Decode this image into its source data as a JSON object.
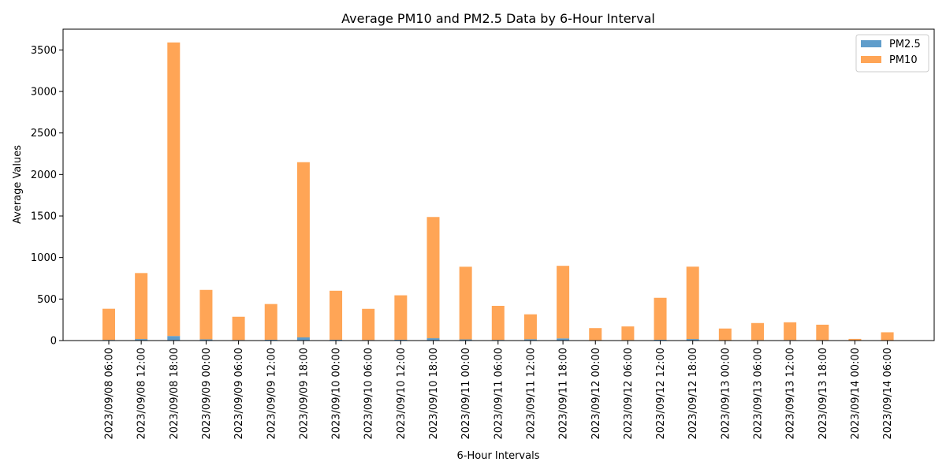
{
  "chart_data": {
    "type": "bar",
    "stacked": true,
    "title": "Average PM10 and PM2.5 Data by 6-Hour Interval",
    "xlabel": "6-Hour Intervals",
    "ylabel": "Average Values",
    "ylim": [
      0,
      3750
    ],
    "yticks": [
      0,
      500,
      1000,
      1500,
      2000,
      2500,
      3000,
      3500
    ],
    "grid": false,
    "legend_position": "top-right",
    "categories": [
      "2023/09/08 06:00",
      "2023/09/08 12:00",
      "2023/09/08 18:00",
      "2023/09/09 00:00",
      "2023/09/09 06:00",
      "2023/09/09 12:00",
      "2023/09/09 18:00",
      "2023/09/10 00:00",
      "2023/09/10 06:00",
      "2023/09/10 12:00",
      "2023/09/10 18:00",
      "2023/09/11 00:00",
      "2023/09/11 06:00",
      "2023/09/11 12:00",
      "2023/09/11 18:00",
      "2023/09/12 00:00",
      "2023/09/12 06:00",
      "2023/09/12 12:00",
      "2023/09/12 18:00",
      "2023/09/13 00:00",
      "2023/09/13 06:00",
      "2023/09/13 12:00",
      "2023/09/13 18:00",
      "2023/09/14 00:00",
      "2023/09/14 06:00"
    ],
    "series": [
      {
        "name": "PM2.5",
        "color": "#5f9dcb",
        "values": [
          8,
          18,
          55,
          15,
          7,
          10,
          38,
          10,
          7,
          10,
          28,
          14,
          8,
          16,
          26,
          5,
          6,
          10,
          18,
          5,
          6,
          7,
          6,
          2,
          3
        ]
      },
      {
        "name": "PM10",
        "color": "#ffa556",
        "values": [
          375,
          795,
          3535,
          595,
          280,
          430,
          2110,
          590,
          375,
          535,
          1460,
          875,
          410,
          300,
          874,
          145,
          164,
          505,
          872,
          140,
          205,
          213,
          185,
          18,
          97
        ]
      }
    ]
  }
}
